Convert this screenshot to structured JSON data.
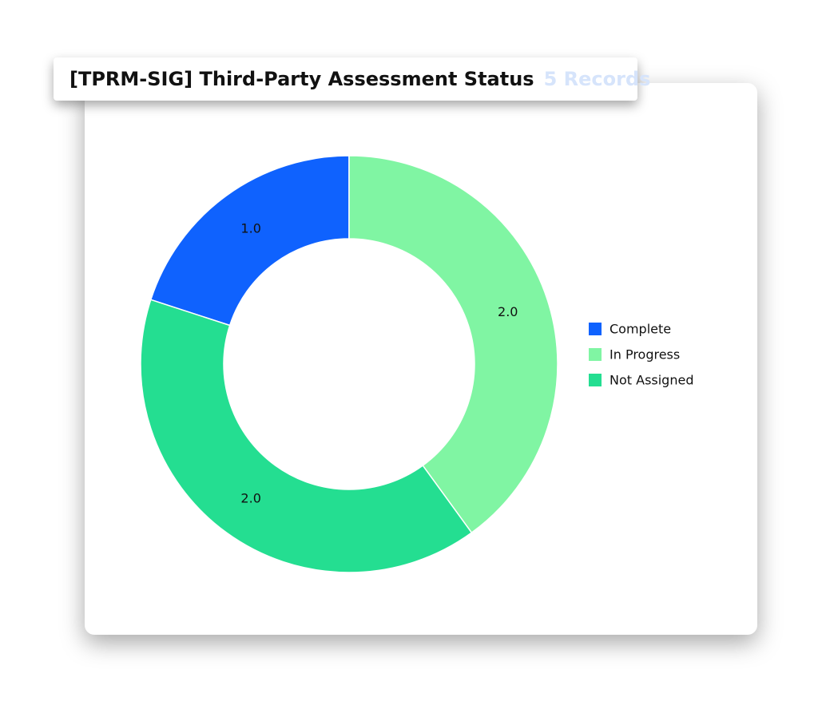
{
  "chart_data": {
    "type": "donut",
    "title": "[TPRM-SIG] Third-Party Assessment Status",
    "subtitle": "5 Records",
    "categories": [
      "Complete",
      "In Progress",
      "Not Assigned"
    ],
    "values": [
      1,
      2,
      2
    ],
    "value_labels": [
      "1.0",
      "2.0",
      "2.0"
    ],
    "colors": [
      "#0f62fe",
      "#80f5a3",
      "#24de91"
    ],
    "legend": "right"
  }
}
